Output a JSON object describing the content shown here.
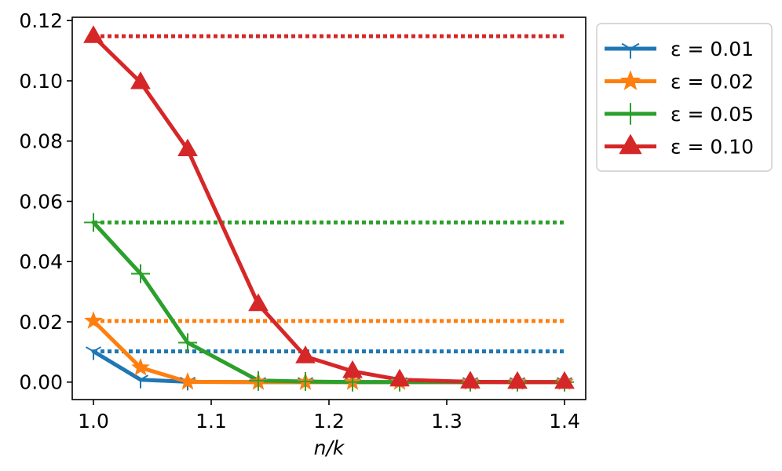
{
  "chart_data": {
    "type": "line",
    "title": "",
    "xlabel": "n/k",
    "ylabel": "",
    "xlim": [
      0.982,
      1.418
    ],
    "ylim": [
      -0.0058,
      0.1211
    ],
    "xticks": [
      1.0,
      1.1,
      1.2,
      1.3,
      1.4
    ],
    "xtick_labels": [
      "1.0",
      "1.1",
      "1.2",
      "1.3",
      "1.4"
    ],
    "yticks": [
      0.0,
      0.02,
      0.04,
      0.06,
      0.08,
      0.1,
      0.12
    ],
    "ytick_labels": [
      "0.00",
      "0.02",
      "0.04",
      "0.06",
      "0.08",
      "0.10",
      "0.12"
    ],
    "grid": false,
    "legend_position": "outside-right-top",
    "series": [
      {
        "name": "ε = 0.01",
        "color": "#1f77b4",
        "marker": "tri-down",
        "x": [
          1.0,
          1.04,
          1.08,
          1.14,
          1.18,
          1.22,
          1.26,
          1.32,
          1.36,
          1.4
        ],
        "y": [
          0.0102,
          0.0008,
          0.0001,
          0.0,
          0.0,
          0.0,
          0.0,
          0.0,
          0.0,
          0.0
        ],
        "reference": 0.0102
      },
      {
        "name": "ε = 0.02",
        "color": "#ff7f0e",
        "marker": "star",
        "x": [
          1.0,
          1.04,
          1.08,
          1.14,
          1.18,
          1.22,
          1.26,
          1.32,
          1.36,
          1.4
        ],
        "y": [
          0.0203,
          0.0048,
          0.0001,
          0.0,
          0.0,
          0.0,
          0.0,
          0.0,
          0.0,
          0.0
        ],
        "reference": 0.0203
      },
      {
        "name": "ε = 0.05",
        "color": "#2ca02c",
        "marker": "plus",
        "x": [
          1.0,
          1.04,
          1.08,
          1.14,
          1.18,
          1.22,
          1.26,
          1.32,
          1.36,
          1.4
        ],
        "y": [
          0.053,
          0.036,
          0.0131,
          0.0005,
          0.0002,
          0.0,
          0.0,
          0.0,
          0.0,
          0.0
        ],
        "reference": 0.053
      },
      {
        "name": "ε = 0.10",
        "color": "#d62728",
        "marker": "triangle-up",
        "x": [
          1.0,
          1.04,
          1.08,
          1.14,
          1.18,
          1.22,
          1.26,
          1.32,
          1.36,
          1.4
        ],
        "y": [
          0.1148,
          0.0995,
          0.0772,
          0.0258,
          0.0085,
          0.0036,
          0.0008,
          0.0001,
          0.0,
          0.0
        ],
        "reference": 0.1148
      }
    ]
  }
}
